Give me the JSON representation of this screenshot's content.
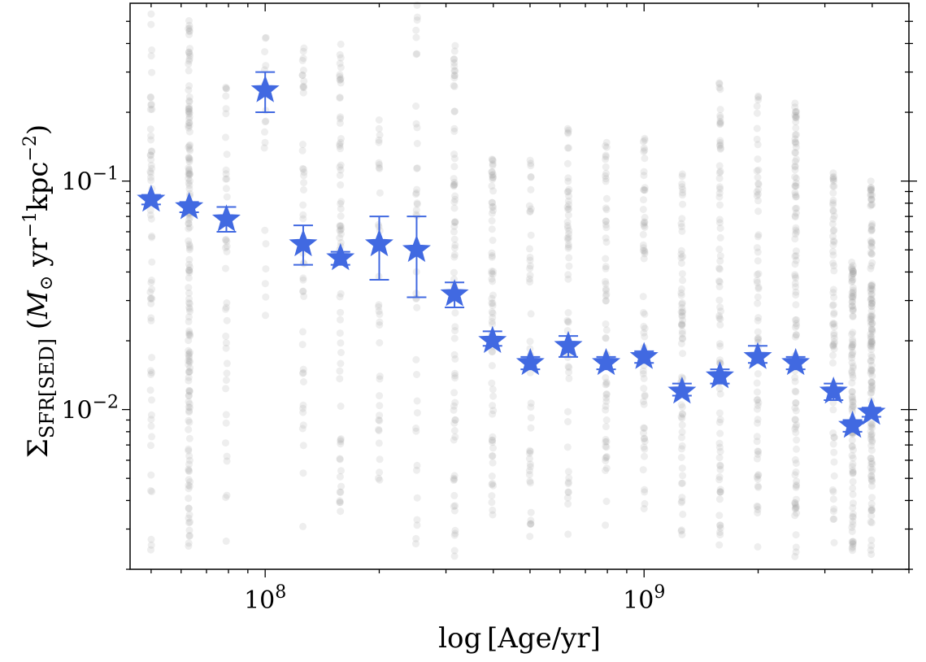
{
  "chart_data": {
    "type": "scatter",
    "xlabel": "log [Age/yr]",
    "ylabel": {
      "symbol": "Σ",
      "subscript": "SFR[SED]",
      "units_open": " (",
      "units_M": "M",
      "units_sun": "⊙",
      "units_yr": " yr",
      "units_yr_exp": "−1",
      "units_kpc": "kpc",
      "units_kpc_exp": "−2",
      "units_close": ")"
    },
    "x_scale": "log",
    "y_scale": "log",
    "xlim": [
      44000000,
      5000000000
    ],
    "ylim": [
      0.002,
      0.6
    ],
    "x_ticks": [
      {
        "value": 100000000,
        "base": "10",
        "exp": "8"
      },
      {
        "value": 1000000000,
        "base": "10",
        "exp": "9"
      }
    ],
    "y_ticks": [
      {
        "value": 0.01,
        "base": "10",
        "exp": "−2"
      },
      {
        "value": 0.1,
        "base": "10",
        "exp": "−1"
      }
    ],
    "grid": false,
    "ticks_on_all_sides": true,
    "series": [
      {
        "role": "individual_points",
        "color": "#9e9e9e",
        "opacity": 0.18,
        "marker": "circle",
        "columns": [
          {
            "x": 50000000,
            "ymin": 0.0022,
            "ymax": 0.55,
            "n": 60
          },
          {
            "x": 63000000,
            "ymin": 0.0022,
            "ymax": 0.52,
            "n": 160
          },
          {
            "x": 79000000,
            "ymin": 0.0025,
            "ymax": 0.3,
            "n": 40
          },
          {
            "x": 100000000,
            "ymin": 0.015,
            "ymax": 0.6,
            "n": 18
          },
          {
            "x": 126000000,
            "ymin": 0.0028,
            "ymax": 0.4,
            "n": 45
          },
          {
            "x": 158000000,
            "ymin": 0.0035,
            "ymax": 0.45,
            "n": 70
          },
          {
            "x": 200000000,
            "ymin": 0.0032,
            "ymax": 0.2,
            "n": 35
          },
          {
            "x": 251000000,
            "ymin": 0.0022,
            "ymax": 0.6,
            "n": 40
          },
          {
            "x": 316000000,
            "ymin": 0.0022,
            "ymax": 0.45,
            "n": 80
          },
          {
            "x": 398000000,
            "ymin": 0.003,
            "ymax": 0.14,
            "n": 70
          },
          {
            "x": 501000000,
            "ymin": 0.0025,
            "ymax": 0.13,
            "n": 45
          },
          {
            "x": 631000000,
            "ymin": 0.0025,
            "ymax": 0.17,
            "n": 60
          },
          {
            "x": 794000000,
            "ymin": 0.003,
            "ymax": 0.15,
            "n": 65
          },
          {
            "x": 1000000000,
            "ymin": 0.003,
            "ymax": 0.17,
            "n": 60
          },
          {
            "x": 1259000000,
            "ymin": 0.0026,
            "ymax": 0.115,
            "n": 70
          },
          {
            "x": 1585000000,
            "ymin": 0.0025,
            "ymax": 0.28,
            "n": 80
          },
          {
            "x": 1995000000,
            "ymin": 0.0025,
            "ymax": 0.25,
            "n": 70
          },
          {
            "x": 2512000000,
            "ymin": 0.0022,
            "ymax": 0.23,
            "n": 110
          },
          {
            "x": 3162000000,
            "ymin": 0.0022,
            "ymax": 0.11,
            "n": 70
          },
          {
            "x": 3548000000,
            "ymin": 0.0022,
            "ymax": 0.045,
            "n": 110
          },
          {
            "x": 3981000000,
            "ymin": 0.0022,
            "ymax": 0.1,
            "n": 150
          }
        ]
      },
      {
        "role": "binned_median",
        "color": "#4169e1",
        "marker": "star",
        "points": [
          {
            "x": 50000000,
            "y": 0.083,
            "lo": 0.079,
            "hi": 0.087
          },
          {
            "x": 63000000,
            "y": 0.077,
            "lo": 0.073,
            "hi": 0.081
          },
          {
            "x": 79000000,
            "y": 0.068,
            "lo": 0.06,
            "hi": 0.077
          },
          {
            "x": 100000000,
            "y": 0.25,
            "lo": 0.2,
            "hi": 0.3
          },
          {
            "x": 126000000,
            "y": 0.053,
            "lo": 0.043,
            "hi": 0.064
          },
          {
            "x": 158000000,
            "y": 0.046,
            "lo": 0.043,
            "hi": 0.049
          },
          {
            "x": 200000000,
            "y": 0.053,
            "lo": 0.037,
            "hi": 0.07
          },
          {
            "x": 251000000,
            "y": 0.05,
            "lo": 0.031,
            "hi": 0.07
          },
          {
            "x": 316000000,
            "y": 0.032,
            "lo": 0.028,
            "hi": 0.036
          },
          {
            "x": 398000000,
            "y": 0.02,
            "lo": 0.019,
            "hi": 0.022
          },
          {
            "x": 501000000,
            "y": 0.016,
            "lo": 0.015,
            "hi": 0.017
          },
          {
            "x": 631000000,
            "y": 0.019,
            "lo": 0.017,
            "hi": 0.021
          },
          {
            "x": 794000000,
            "y": 0.016,
            "lo": 0.015,
            "hi": 0.017
          },
          {
            "x": 1000000000,
            "y": 0.017,
            "lo": 0.016,
            "hi": 0.018
          },
          {
            "x": 1259000000,
            "y": 0.012,
            "lo": 0.0115,
            "hi": 0.013
          },
          {
            "x": 1585000000,
            "y": 0.014,
            "lo": 0.013,
            "hi": 0.015
          },
          {
            "x": 1995000000,
            "y": 0.017,
            "lo": 0.016,
            "hi": 0.019
          },
          {
            "x": 2512000000,
            "y": 0.016,
            "lo": 0.015,
            "hi": 0.017
          },
          {
            "x": 3162000000,
            "y": 0.012,
            "lo": 0.011,
            "hi": 0.013
          },
          {
            "x": 3548000000,
            "y": 0.0085,
            "lo": 0.008,
            "hi": 0.009
          },
          {
            "x": 3981000000,
            "y": 0.0097,
            "lo": 0.0093,
            "hi": 0.0102
          }
        ]
      }
    ]
  }
}
